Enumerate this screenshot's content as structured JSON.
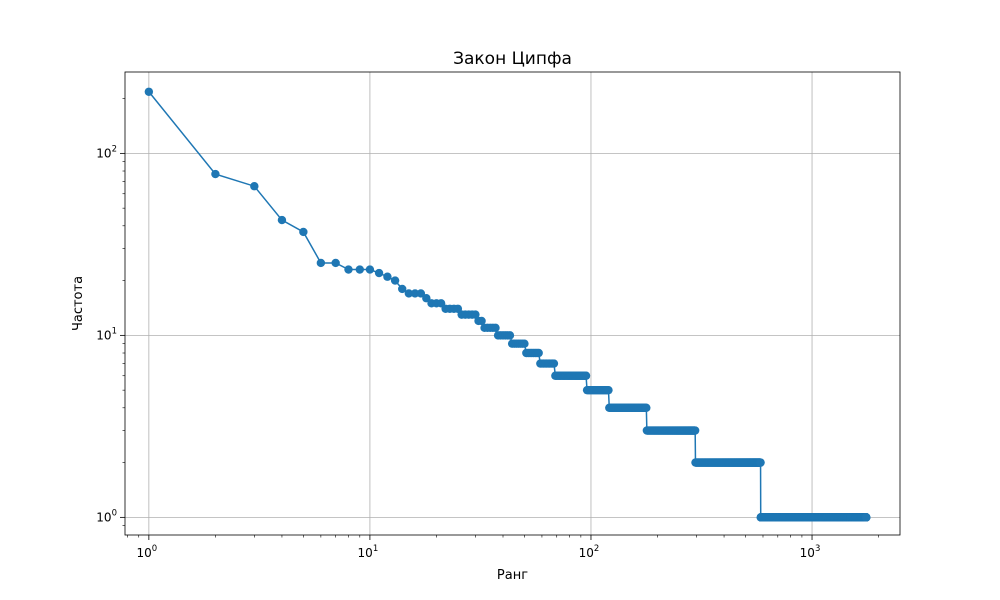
{
  "chart_data": {
    "type": "scatter",
    "title": "Закон Ципфа",
    "xlabel": "Ранг",
    "ylabel": "Частота",
    "x_scale": "log",
    "y_scale": "log",
    "xlim": [
      0.78,
      2500
    ],
    "ylim": [
      0.8,
      280
    ],
    "grid": true,
    "legend": "none",
    "line_color": "#1f77b4",
    "marker_color": "#1f77b4",
    "x_ticks": [
      {
        "value": 1,
        "label": "10",
        "exp": "0"
      },
      {
        "value": 10,
        "label": "10",
        "exp": "1"
      },
      {
        "value": 100,
        "label": "10",
        "exp": "2"
      },
      {
        "value": 1000,
        "label": "10",
        "exp": "3"
      }
    ],
    "y_ticks": [
      {
        "value": 1,
        "label": "10",
        "exp": "0"
      },
      {
        "value": 10,
        "label": "10",
        "exp": "1"
      },
      {
        "value": 100,
        "label": "10",
        "exp": "2"
      }
    ],
    "series": [
      {
        "runs": [
          [
            1,
            1,
            218
          ],
          [
            2,
            2,
            77
          ],
          [
            3,
            3,
            66
          ],
          [
            4,
            4,
            43
          ],
          [
            5,
            5,
            37
          ],
          [
            6,
            7,
            25
          ],
          [
            8,
            10,
            23
          ],
          [
            11,
            11,
            22
          ],
          [
            12,
            12,
            21
          ],
          [
            13,
            13,
            20
          ],
          [
            14,
            14,
            18
          ],
          [
            15,
            17,
            17
          ],
          [
            18,
            18,
            16
          ],
          [
            19,
            21,
            15
          ],
          [
            22,
            25,
            14
          ],
          [
            26,
            30,
            13
          ],
          [
            31,
            32,
            12
          ],
          [
            33,
            37,
            11
          ],
          [
            38,
            43,
            10
          ],
          [
            44,
            50,
            9
          ],
          [
            51,
            58,
            8
          ],
          [
            59,
            68,
            7
          ],
          [
            69,
            95,
            6
          ],
          [
            96,
            120,
            5
          ],
          [
            121,
            178,
            4
          ],
          [
            179,
            296,
            3
          ],
          [
            297,
            585,
            2
          ],
          [
            586,
            1760,
            1
          ]
        ]
      }
    ]
  }
}
